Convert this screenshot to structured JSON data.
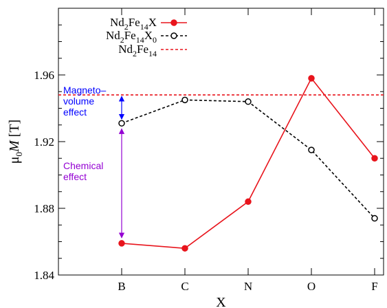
{
  "chart_data": {
    "type": "line",
    "categories": [
      "B",
      "C",
      "N",
      "O",
      "F"
    ],
    "xlabel": "X",
    "ylabel": "μ0M [T]",
    "ylim": [
      1.84,
      2.0
    ],
    "yticks": [
      1.84,
      1.88,
      1.92,
      1.96
    ],
    "y_minor_step": 0.01,
    "grid": false,
    "legend_position": "top-left",
    "series": [
      {
        "name": "Nd2Fe14X",
        "values": [
          1.859,
          1.856,
          1.884,
          1.958,
          1.91
        ],
        "color": "#e8141c",
        "line_style": "solid",
        "marker": "filled-circle"
      },
      {
        "name": "Nd2Fe14X0",
        "values": [
          1.931,
          1.945,
          1.944,
          1.915,
          1.874
        ],
        "color": "#000000",
        "line_style": "dashed",
        "marker": "open-circle"
      },
      {
        "name": "Nd2Fe14",
        "constant": 1.948,
        "color": "#e8141c",
        "line_style": "dashed",
        "marker": "none"
      }
    ],
    "annotations": [
      {
        "text_lines": [
          "Magneto–",
          "volume",
          "effect"
        ],
        "color": "#0000ff",
        "x_category": "B",
        "from": 1.931,
        "to": 1.948
      },
      {
        "text_lines": [
          "Chemical",
          "effect"
        ],
        "color": "#9400d3",
        "x_category": "B",
        "from": 1.859,
        "to": 1.931
      }
    ]
  }
}
